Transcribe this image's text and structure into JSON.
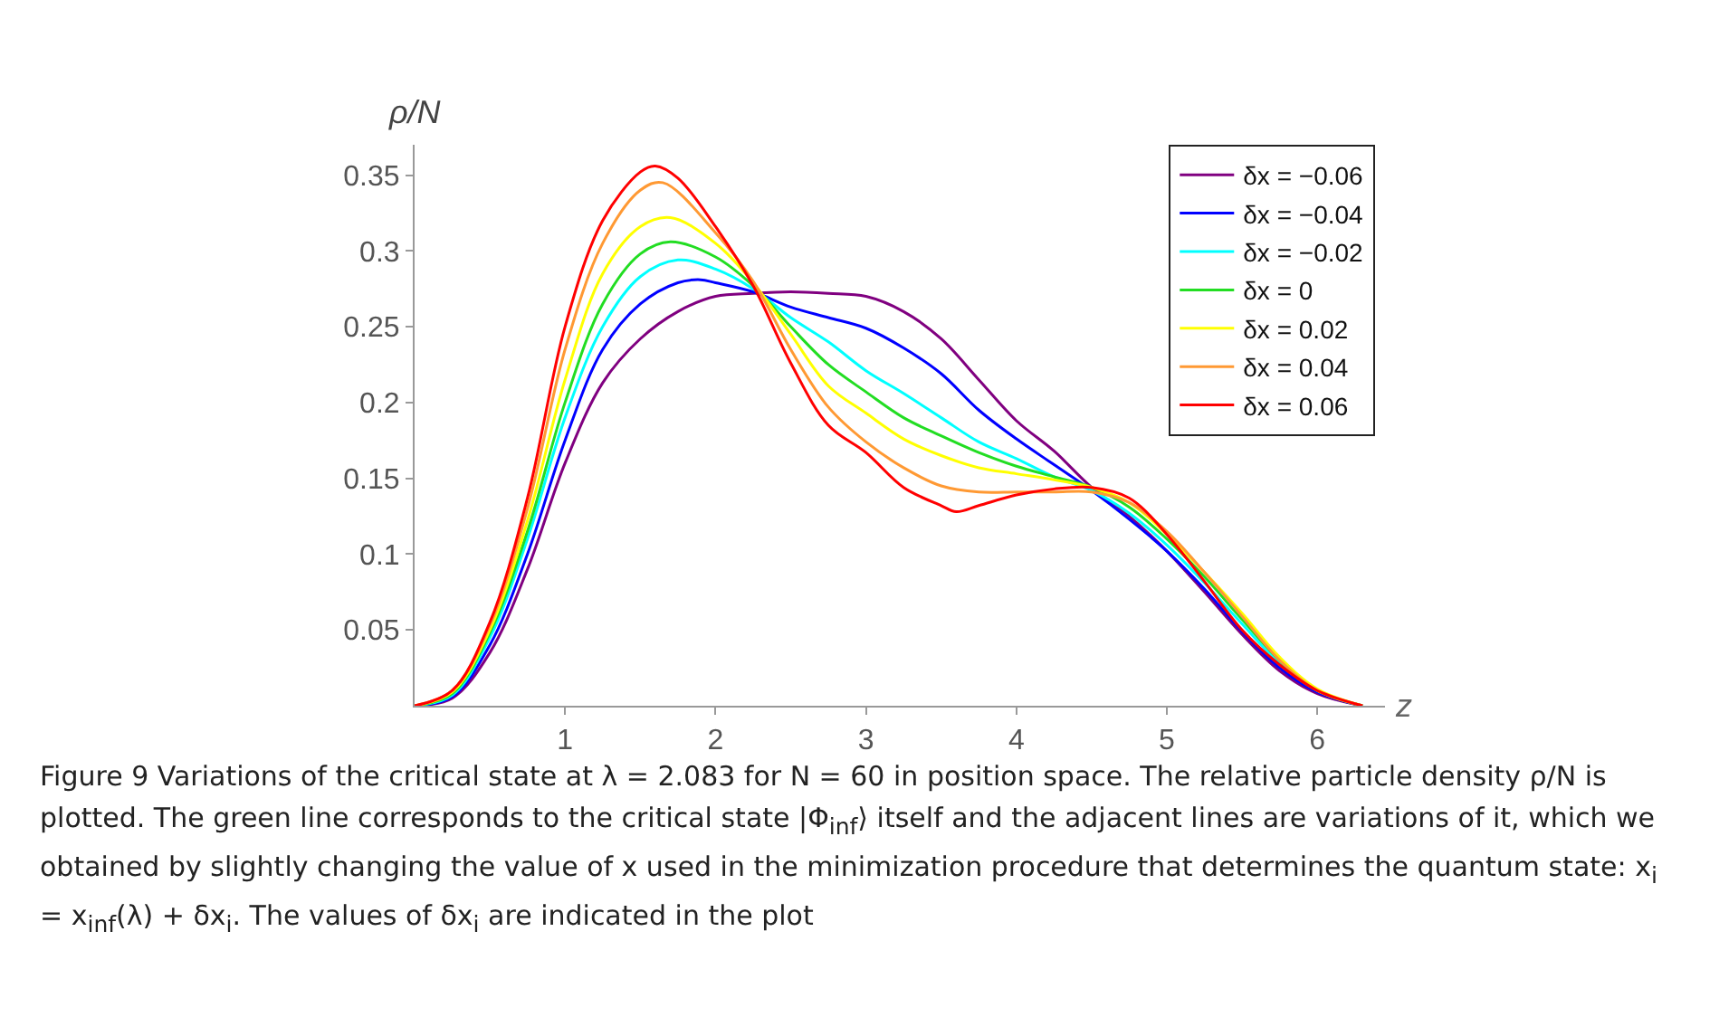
{
  "chart_data": {
    "type": "line",
    "xlabel": "z",
    "ylabel": "ρ/N",
    "xlim": [
      0,
      6.45
    ],
    "ylim": [
      0,
      0.37
    ],
    "xticks": [
      1,
      2,
      3,
      4,
      5,
      6
    ],
    "yticks": [
      0.05,
      0.1,
      0.15,
      0.2,
      0.25,
      0.3,
      0.35
    ],
    "grid": false,
    "legend": "top right",
    "marker": "none",
    "line_style": "solid",
    "series": [
      {
        "name": "δx = −0.06",
        "color": "#800080",
        "x": [
          0,
          0.25,
          0.5,
          0.75,
          1,
          1.25,
          1.5,
          1.75,
          2,
          2.25,
          2.5,
          2.75,
          3,
          3.25,
          3.5,
          3.75,
          4,
          4.25,
          4.5,
          4.75,
          5,
          5.25,
          5.5,
          5.75,
          6,
          6.3
        ],
        "values": [
          0,
          0.005,
          0.035,
          0.09,
          0.16,
          0.213,
          0.242,
          0.26,
          0.27,
          0.272,
          0.273,
          0.272,
          0.27,
          0.26,
          0.242,
          0.215,
          0.188,
          0.168,
          0.144,
          0.125,
          0.102,
          0.075,
          0.047,
          0.023,
          0.008,
          0
        ]
      },
      {
        "name": "δx = −0.04",
        "color": "#0000ff",
        "x": [
          0,
          0.25,
          0.5,
          0.75,
          1,
          1.25,
          1.5,
          1.75,
          1.9,
          2,
          2.25,
          2.5,
          2.75,
          3,
          3.25,
          3.5,
          3.75,
          4,
          4.25,
          4.5,
          4.75,
          5,
          5.25,
          5.5,
          5.75,
          6,
          6.3
        ],
        "values": [
          0,
          0.006,
          0.04,
          0.1,
          0.175,
          0.235,
          0.265,
          0.279,
          0.281,
          0.279,
          0.273,
          0.263,
          0.256,
          0.249,
          0.236,
          0.219,
          0.195,
          0.176,
          0.159,
          0.142,
          0.123,
          0.102,
          0.077,
          0.049,
          0.025,
          0.009,
          0
        ]
      },
      {
        "name": "δx = −0.02",
        "color": "#00ffff",
        "x": [
          0,
          0.25,
          0.5,
          0.75,
          1,
          1.25,
          1.5,
          1.75,
          2,
          2.25,
          2.5,
          2.75,
          3,
          3.25,
          3.5,
          3.75,
          4,
          4.25,
          4.5,
          4.75,
          5,
          5.25,
          5.5,
          5.75,
          6,
          6.3
        ],
        "values": [
          0,
          0.007,
          0.045,
          0.11,
          0.19,
          0.25,
          0.283,
          0.294,
          0.288,
          0.275,
          0.256,
          0.24,
          0.221,
          0.206,
          0.19,
          0.174,
          0.163,
          0.151,
          0.142,
          0.127,
          0.106,
          0.081,
          0.054,
          0.028,
          0.01,
          0
        ]
      },
      {
        "name": "δx = 0",
        "color": "#22dd22",
        "x": [
          0,
          0.25,
          0.5,
          0.75,
          1,
          1.25,
          1.5,
          1.7,
          2,
          2.25,
          2.5,
          2.75,
          3,
          3.25,
          3.5,
          3.75,
          4,
          4.25,
          4.5,
          4.75,
          5,
          5.25,
          5.5,
          5.75,
          6,
          6.3
        ],
        "values": [
          0,
          0.008,
          0.048,
          0.115,
          0.2,
          0.265,
          0.298,
          0.306,
          0.296,
          0.277,
          0.25,
          0.225,
          0.207,
          0.19,
          0.178,
          0.167,
          0.158,
          0.151,
          0.144,
          0.131,
          0.11,
          0.085,
          0.057,
          0.03,
          0.01,
          0
        ]
      },
      {
        "name": "δx = 0.02",
        "color": "#ffff00",
        "x": [
          0,
          0.25,
          0.5,
          0.75,
          1,
          1.25,
          1.5,
          1.7,
          2,
          2.25,
          2.5,
          2.75,
          3,
          3.25,
          3.5,
          3.75,
          4,
          4.25,
          4.5,
          4.75,
          5,
          5.25,
          5.5,
          5.75,
          6,
          6.3
        ],
        "values": [
          0,
          0.009,
          0.05,
          0.122,
          0.215,
          0.285,
          0.316,
          0.322,
          0.305,
          0.279,
          0.245,
          0.211,
          0.193,
          0.176,
          0.165,
          0.157,
          0.153,
          0.149,
          0.144,
          0.134,
          0.113,
          0.088,
          0.061,
          0.032,
          0.011,
          0
        ]
      },
      {
        "name": "δx = 0.04",
        "color": "#ff9933",
        "x": [
          0,
          0.25,
          0.5,
          0.75,
          1,
          1.25,
          1.5,
          1.65,
          2,
          2.25,
          2.5,
          2.75,
          3,
          3.25,
          3.5,
          3.75,
          4,
          4.25,
          4.5,
          4.75,
          5,
          5.25,
          5.5,
          5.75,
          6,
          6.3
        ],
        "values": [
          0,
          0.01,
          0.053,
          0.13,
          0.235,
          0.305,
          0.34,
          0.345,
          0.312,
          0.28,
          0.235,
          0.197,
          0.174,
          0.157,
          0.145,
          0.141,
          0.141,
          0.141,
          0.141,
          0.134,
          0.115,
          0.088,
          0.059,
          0.03,
          0.01,
          0
        ]
      },
      {
        "name": "δx = 0.06",
        "color": "#ff0000",
        "x": [
          0,
          0.25,
          0.5,
          0.75,
          1,
          1.25,
          1.5,
          1.6,
          1.75,
          2,
          2.25,
          2.5,
          2.75,
          3,
          3.25,
          3.5,
          3.6,
          3.75,
          4,
          4.25,
          4.5,
          4.75,
          5,
          5.25,
          5.5,
          5.75,
          6,
          6.3
        ],
        "values": [
          0,
          0.01,
          0.055,
          0.137,
          0.25,
          0.32,
          0.352,
          0.356,
          0.348,
          0.316,
          0.277,
          0.226,
          0.185,
          0.167,
          0.144,
          0.132,
          0.128,
          0.132,
          0.139,
          0.143,
          0.144,
          0.137,
          0.113,
          0.082,
          0.05,
          0.027,
          0.01,
          0
        ]
      }
    ],
    "annotations": [
      "Figure 9  Variations of the critical state at λ = 2.083 for N = 60 in position space. The relative particle density ρ/N is plotted. The green line corresponds to the critical state |Φ$_{inf}$⟩ itself and the adjacent lines are variations of it, which we obtained by slightly changing the value of x used in the minimization procedure that determines the quantum state: x$_{i}$ = x$_{inf}$(λ) + δx$_{i}$. The values of δx$_{i}$ are indicated in the plot"
    ]
  }
}
